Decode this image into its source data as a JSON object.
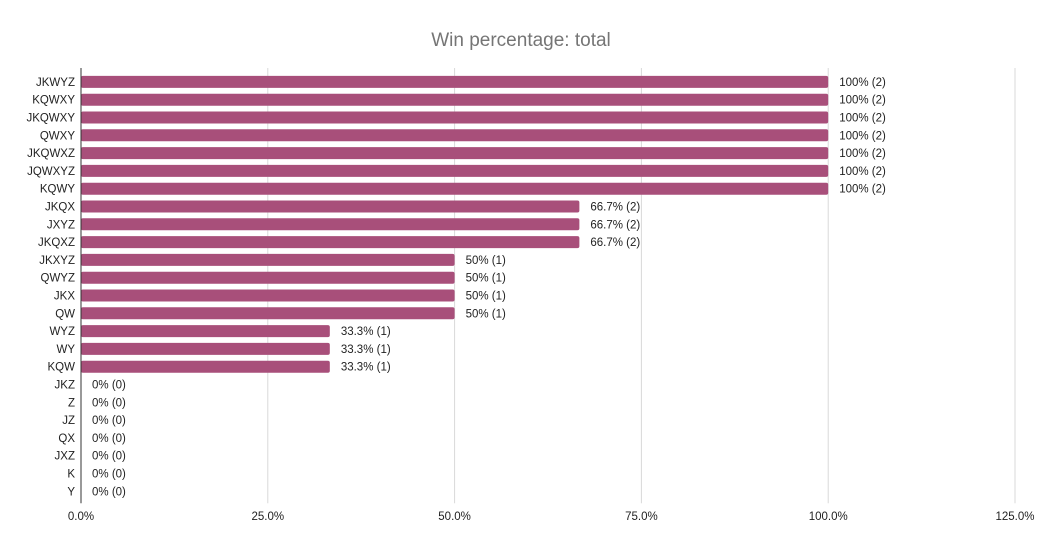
{
  "chart_data": {
    "type": "bar",
    "orientation": "horizontal",
    "title": "Win percentage: total",
    "xlabel": "",
    "ylabel": "",
    "xlim": [
      0,
      125
    ],
    "x_ticks": [
      "0.0%",
      "25.0%",
      "50.0%",
      "75.0%",
      "100.0%",
      "125.0%"
    ],
    "x_tick_values": [
      0,
      25,
      50,
      75,
      100,
      125
    ],
    "grid": true,
    "legend": "none",
    "bar_color": "#a84f7a",
    "categories": [
      "JKWYZ",
      "KQWXY",
      "JKQWXY",
      "QWXY",
      "JKQWXZ",
      "JQWXYZ",
      "KQWY",
      "JKQX",
      "JXYZ",
      "JKQXZ",
      "JKXYZ",
      "QWYZ",
      "JKX",
      "QW",
      "WYZ",
      "WY",
      "KQW",
      "JKZ",
      "Z",
      "JZ",
      "QX",
      "JXZ",
      "K",
      "Y"
    ],
    "values": [
      100,
      100,
      100,
      100,
      100,
      100,
      100,
      66.7,
      66.7,
      66.7,
      50,
      50,
      50,
      50,
      33.3,
      33.3,
      33.3,
      0,
      0,
      0,
      0,
      0,
      0,
      0
    ],
    "data_labels": [
      "100% (2)",
      "100% (2)",
      "100% (2)",
      "100% (2)",
      "100% (2)",
      "100% (2)",
      "100% (2)",
      "66.7% (2)",
      "66.7% (2)",
      "66.7% (2)",
      "50% (1)",
      "50% (1)",
      "50% (1)",
      "50% (1)",
      "33.3% (1)",
      "33.3% (1)",
      "33.3% (1)",
      "0% (0)",
      "0% (0)",
      "0% (0)",
      "0% (0)",
      "0% (0)",
      "0% (0)",
      "0% (0)"
    ]
  }
}
